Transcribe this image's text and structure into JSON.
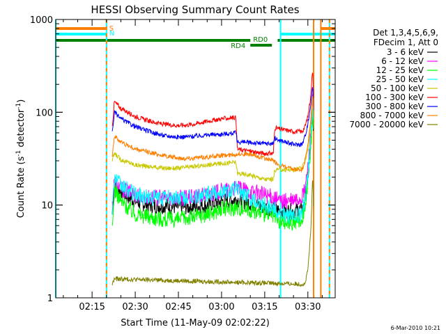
{
  "chart_data": {
    "type": "line",
    "title": "HESSI Observing Summary Count Rates",
    "xlabel": "Start Time (11-May-09 02:02:22)",
    "ylabel": "Count Rate (s⁻¹ detector⁻¹)",
    "ylabel_main": "Count Rate (s",
    "ylabel_sup1": "-1",
    "ylabel_mid": " detector",
    "ylabel_sup2": "-1",
    "ylabel_end": ")",
    "y_scale": "log",
    "ylim": [
      1,
      1000
    ],
    "xlim": [
      "02:02:22",
      "03:39:30"
    ],
    "xticks": [
      "02:15",
      "02:30",
      "02:45",
      "03:00",
      "03:15",
      "03:30"
    ],
    "yticks": [
      "1",
      "10",
      "100",
      "1000"
    ],
    "legend_header": [
      "Det 1,3,4,5,6,9,",
      "FDecim 1, Att 0"
    ],
    "legend_placement": "right",
    "footer": "6-Mar-2010 10:21",
    "flags": [
      {
        "label": "S",
        "color": "#ff8000",
        "segments": [
          [
            "02:02:22",
            "02:20:00"
          ],
          [
            "03:34:30",
            "03:39:30"
          ]
        ]
      },
      {
        "label": "N",
        "color": "#00ffff",
        "segments": [
          [
            "02:02:22",
            "02:20:00"
          ],
          [
            "03:20:30",
            "03:39:30"
          ]
        ]
      },
      {
        "label": "RD0",
        "color": "#008000",
        "segments": [
          [
            "02:02:22",
            "03:10:00"
          ],
          [
            "03:19:30",
            "03:39:30"
          ]
        ]
      },
      {
        "label": "RD4",
        "color": "#008000",
        "segments": [
          [
            "03:10:00",
            "03:17:30"
          ]
        ]
      }
    ],
    "vlines": [
      {
        "time": "02:02:22",
        "color": "#00ffff"
      },
      {
        "time": "02:20:00",
        "color": "#00ffff",
        "style": "dashed-orange"
      },
      {
        "time": "03:20:30",
        "color": "#00ffff"
      },
      {
        "time": "03:32:00",
        "color": "#ff8000"
      },
      {
        "time": "03:34:30",
        "color": "#ff8000"
      },
      {
        "time": "03:37:30",
        "color": "#00ffff",
        "style": "dashed-orange"
      }
    ],
    "series": [
      {
        "name": "3 - 6 keV",
        "color": "#000000",
        "points": [
          [
            "02:22:00",
            8
          ],
          [
            "02:22:45",
            17
          ],
          [
            "02:25",
            14
          ],
          [
            "02:30",
            11
          ],
          [
            "02:35",
            10
          ],
          [
            "02:40",
            9.8
          ],
          [
            "02:45",
            9.5
          ],
          [
            "02:50",
            9.6
          ],
          [
            "02:55",
            10
          ],
          [
            "03:00",
            11
          ],
          [
            "03:05",
            11.5
          ],
          [
            "03:10",
            10.5
          ],
          [
            "03:15",
            9.5
          ],
          [
            "03:18",
            9
          ],
          [
            "03:20",
            8.7
          ],
          [
            "03:25",
            8.5
          ],
          [
            "03:28",
            9
          ],
          [
            "03:29",
            12
          ],
          [
            "03:30",
            20
          ],
          [
            "03:31",
            45
          ],
          [
            "03:31:40",
            110
          ],
          [
            "03:32",
            60
          ]
        ]
      },
      {
        "name": "6 - 12 keV",
        "color": "#ff00ff",
        "points": [
          [
            "02:22:00",
            10
          ],
          [
            "02:22:45",
            18
          ],
          [
            "02:25",
            15
          ],
          [
            "02:30",
            13
          ],
          [
            "02:35",
            12
          ],
          [
            "02:40",
            12
          ],
          [
            "02:45",
            12
          ],
          [
            "02:50",
            12
          ],
          [
            "02:55",
            13
          ],
          [
            "03:00",
            14
          ],
          [
            "03:05",
            15
          ],
          [
            "03:10",
            14
          ],
          [
            "03:15",
            13
          ],
          [
            "03:18",
            12
          ],
          [
            "03:20",
            11
          ],
          [
            "03:25",
            11
          ],
          [
            "03:28",
            12
          ],
          [
            "03:29",
            15
          ],
          [
            "03:30",
            25
          ],
          [
            "03:31",
            60
          ],
          [
            "03:31:40",
            140
          ],
          [
            "03:32",
            80
          ]
        ]
      },
      {
        "name": "12 - 25 keV",
        "color": "#00ff00",
        "points": [
          [
            "02:22:00",
            5
          ],
          [
            "02:22:45",
            15
          ],
          [
            "02:25",
            11
          ],
          [
            "02:30",
            8
          ],
          [
            "02:35",
            7.5
          ],
          [
            "02:40",
            7
          ],
          [
            "02:45",
            7
          ],
          [
            "02:50",
            7.5
          ],
          [
            "02:55",
            8
          ],
          [
            "03:00",
            9
          ],
          [
            "03:05",
            9.5
          ],
          [
            "03:10",
            9
          ],
          [
            "03:15",
            8
          ],
          [
            "03:18",
            7.5
          ],
          [
            "03:20",
            6.5
          ],
          [
            "03:25",
            6.5
          ],
          [
            "03:28",
            7
          ],
          [
            "03:29",
            10
          ],
          [
            "03:30",
            18
          ],
          [
            "03:31",
            40
          ],
          [
            "03:31:40",
            100
          ],
          [
            "03:32",
            55
          ]
        ]
      },
      {
        "name": "25 - 50 keV",
        "color": "#00ffff",
        "points": [
          [
            "02:22:00",
            9
          ],
          [
            "02:22:45",
            20
          ],
          [
            "02:25",
            16
          ],
          [
            "02:30",
            13
          ],
          [
            "02:35",
            12
          ],
          [
            "02:40",
            12
          ],
          [
            "02:45",
            12
          ],
          [
            "02:50",
            12
          ],
          [
            "02:55",
            13
          ],
          [
            "03:00",
            14
          ],
          [
            "03:05",
            15
          ],
          [
            "03:10",
            12
          ],
          [
            "03:15",
            10
          ],
          [
            "03:18",
            9.5
          ],
          [
            "03:20",
            8
          ],
          [
            "03:25",
            7.5
          ],
          [
            "03:28",
            8
          ],
          [
            "03:29",
            12
          ],
          [
            "03:30",
            22
          ],
          [
            "03:31",
            50
          ],
          [
            "03:31:40",
            120
          ],
          [
            "03:32",
            70
          ]
        ]
      },
      {
        "name": "50 - 100 keV",
        "color": "#c8c800",
        "points": [
          [
            "02:22:00",
            30
          ],
          [
            "02:22:45",
            36
          ],
          [
            "02:25",
            31
          ],
          [
            "02:30",
            27
          ],
          [
            "02:35",
            26
          ],
          [
            "02:40",
            25
          ],
          [
            "02:45",
            25
          ],
          [
            "02:50",
            26
          ],
          [
            "02:55",
            27
          ],
          [
            "03:00",
            28
          ],
          [
            "03:05",
            29
          ],
          [
            "03:05:30",
            22
          ],
          [
            "03:10",
            21
          ],
          [
            "03:15",
            19
          ],
          [
            "03:18",
            19
          ],
          [
            "03:18:30",
            24
          ],
          [
            "03:20",
            24
          ],
          [
            "03:25",
            24
          ],
          [
            "03:28",
            25
          ],
          [
            "03:29",
            30
          ],
          [
            "03:30",
            40
          ],
          [
            "03:31",
            70
          ],
          [
            "03:31:40",
            150
          ],
          [
            "03:32",
            90
          ]
        ]
      },
      {
        "name": "100 - 300 keV",
        "color": "#ff0000",
        "points": [
          [
            "02:22:00",
            70
          ],
          [
            "02:22:45",
            130
          ],
          [
            "02:25",
            110
          ],
          [
            "02:30",
            90
          ],
          [
            "02:35",
            80
          ],
          [
            "02:40",
            74
          ],
          [
            "02:45",
            72
          ],
          [
            "02:50",
            74
          ],
          [
            "02:55",
            80
          ],
          [
            "03:00",
            85
          ],
          [
            "03:05",
            88
          ],
          [
            "03:05:30",
            40
          ],
          [
            "03:10",
            38
          ],
          [
            "03:15",
            36
          ],
          [
            "03:18",
            36
          ],
          [
            "03:18:30",
            68
          ],
          [
            "03:20",
            66
          ],
          [
            "03:25",
            62
          ],
          [
            "03:28",
            62
          ],
          [
            "03:29",
            70
          ],
          [
            "03:30",
            90
          ],
          [
            "03:31",
            150
          ],
          [
            "03:31:40",
            300
          ],
          [
            "03:32",
            150
          ]
        ]
      },
      {
        "name": "300 - 800 keV",
        "color": "#0000ff",
        "points": [
          [
            "02:22:00",
            60
          ],
          [
            "02:22:45",
            100
          ],
          [
            "02:25",
            85
          ],
          [
            "02:30",
            70
          ],
          [
            "02:35",
            62
          ],
          [
            "02:40",
            56
          ],
          [
            "02:45",
            54
          ],
          [
            "02:50",
            55
          ],
          [
            "02:55",
            57
          ],
          [
            "03:00",
            58
          ],
          [
            "03:05",
            60
          ],
          [
            "03:05:30",
            48
          ],
          [
            "03:10",
            47
          ],
          [
            "03:15",
            46
          ],
          [
            "03:18",
            46
          ],
          [
            "03:18:30",
            52
          ],
          [
            "03:20",
            50
          ],
          [
            "03:25",
            45
          ],
          [
            "03:28",
            45
          ],
          [
            "03:29",
            55
          ],
          [
            "03:30",
            75
          ],
          [
            "03:31",
            120
          ],
          [
            "03:31:40",
            200
          ],
          [
            "03:32",
            110
          ]
        ]
      },
      {
        "name": "800 - 7000 keV",
        "color": "#ff8000",
        "points": [
          [
            "02:22:00",
            35
          ],
          [
            "02:22:45",
            55
          ],
          [
            "02:25",
            48
          ],
          [
            "02:30",
            40
          ],
          [
            "02:35",
            37
          ],
          [
            "02:40",
            34
          ],
          [
            "02:45",
            32
          ],
          [
            "02:50",
            32
          ],
          [
            "02:55",
            33
          ],
          [
            "03:00",
            34
          ],
          [
            "03:05",
            35
          ],
          [
            "03:05:30",
            36
          ],
          [
            "03:10",
            35
          ],
          [
            "03:15",
            32
          ],
          [
            "03:18",
            30
          ],
          [
            "03:20",
            27
          ],
          [
            "03:25",
            24
          ],
          [
            "03:28",
            24
          ],
          [
            "03:29",
            30
          ],
          [
            "03:30",
            45
          ],
          [
            "03:31",
            80
          ],
          [
            "03:31:40",
            160
          ],
          [
            "03:32",
            90
          ]
        ]
      },
      {
        "name": "7000 - 20000 keV",
        "color": "#808000",
        "points": [
          [
            "02:22:00",
            1.4
          ],
          [
            "02:22:45",
            1.6
          ],
          [
            "03:29",
            1.4
          ],
          [
            "03:30",
            2
          ],
          [
            "03:31",
            5
          ],
          [
            "03:31:40",
            20
          ],
          [
            "03:32",
            10
          ]
        ]
      }
    ]
  }
}
